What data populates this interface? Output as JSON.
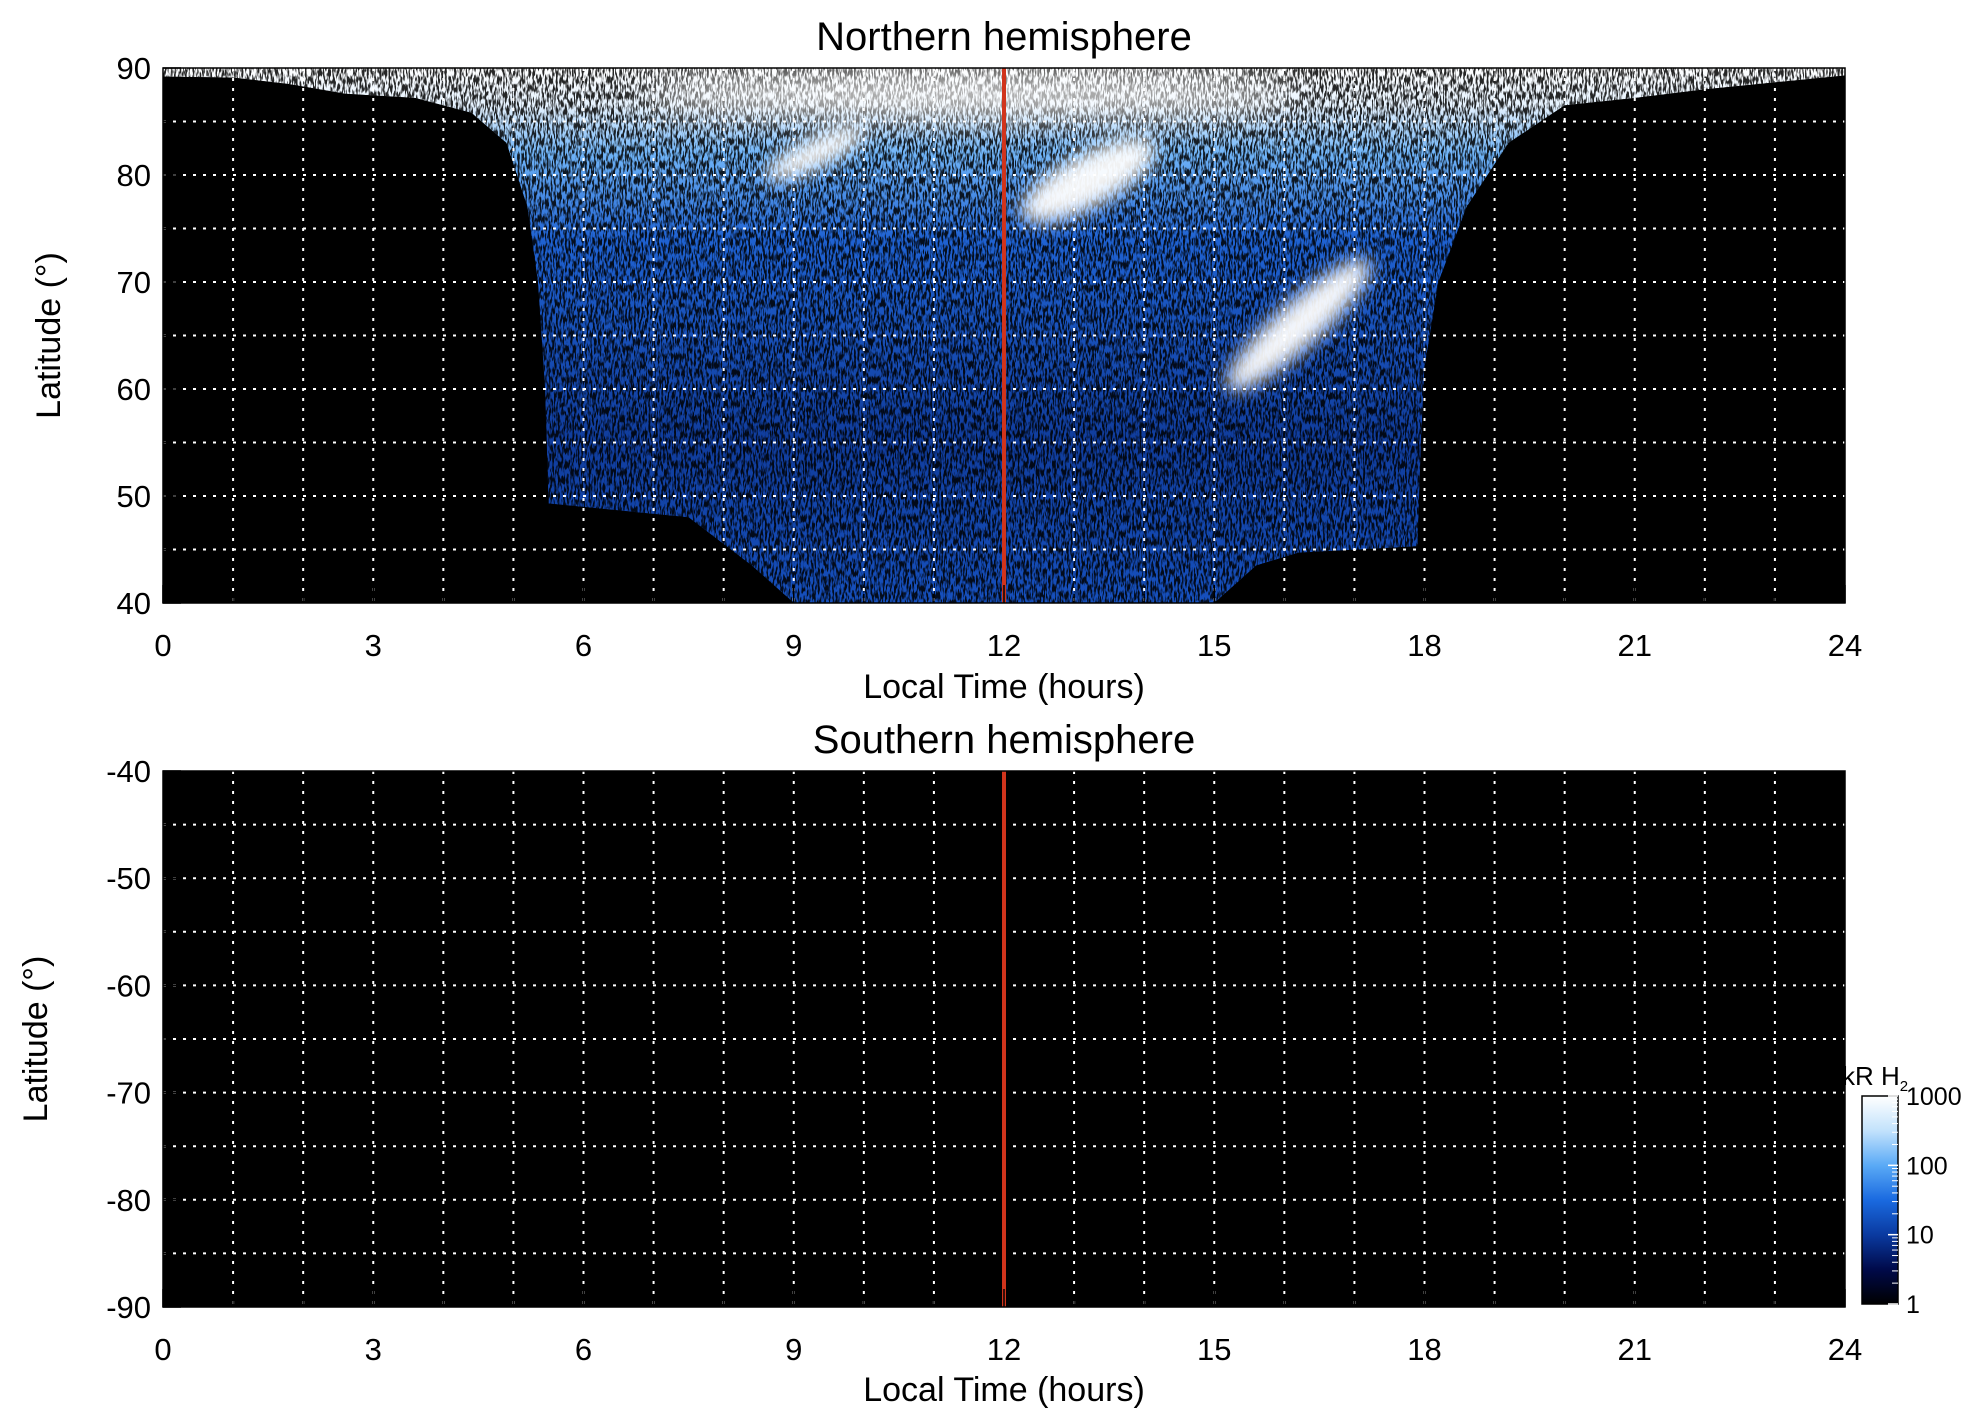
{
  "chart_data": [
    {
      "type": "heatmap",
      "title": "Northern hemisphere",
      "xlabel": "Local Time (hours)",
      "ylabel": "Latitude (°)",
      "xlim": [
        0,
        24
      ],
      "ylim": [
        40,
        90
      ],
      "xticks": [
        0,
        3,
        6,
        9,
        12,
        15,
        18,
        21,
        24
      ],
      "yticks": [
        40,
        50,
        60,
        70,
        80,
        90
      ],
      "x_gridlines": [
        1,
        2,
        3,
        4,
        5,
        6,
        7,
        8,
        9,
        10,
        11,
        13,
        14,
        15,
        16,
        17,
        18,
        19,
        20,
        21,
        22,
        23
      ],
      "y_gridlines": [
        45,
        50,
        55,
        60,
        65,
        70,
        75,
        80,
        85
      ],
      "grid": true,
      "background_color": "#000000",
      "marker_line": {
        "x": 12,
        "color": "#d0341c"
      },
      "coverage_boundary": [
        [
          0.0,
          89.2
        ],
        [
          1.0,
          89.1
        ],
        [
          1.8,
          88.5
        ],
        [
          2.6,
          87.6
        ],
        [
          3.6,
          87.2
        ],
        [
          4.4,
          85.8
        ],
        [
          4.9,
          83.0
        ],
        [
          5.2,
          77.0
        ],
        [
          5.35,
          70.0
        ],
        [
          5.45,
          60.0
        ],
        [
          5.5,
          49.3
        ],
        [
          7.5,
          48.0
        ],
        [
          8.4,
          43.5
        ],
        [
          9.0,
          40.0
        ],
        [
          15.0,
          40.0
        ],
        [
          15.6,
          43.5
        ],
        [
          16.2,
          44.7
        ],
        [
          17.9,
          45.3
        ],
        [
          17.95,
          55.0
        ],
        [
          18.0,
          62.0
        ],
        [
          18.2,
          70.0
        ],
        [
          18.6,
          77.0
        ],
        [
          19.2,
          83.0
        ],
        [
          20.0,
          86.5
        ],
        [
          21.0,
          87.2
        ],
        [
          22.0,
          88.0
        ],
        [
          24.0,
          89.3
        ]
      ],
      "bright_features": [
        {
          "lt": 9.3,
          "lat": 82.0,
          "intensity_kR": 1000
        },
        {
          "lt": 13.2,
          "lat": 79.5,
          "intensity_kR": 1000
        },
        {
          "lt": 16.2,
          "lat": 66.0,
          "intensity_kR": 1000
        },
        {
          "lt": 11.5,
          "lat": 87.5,
          "intensity_kR": 1000
        }
      ]
    },
    {
      "type": "heatmap",
      "title": "Southern hemisphere",
      "xlabel": "Local Time (hours)",
      "ylabel": "Latitude (°)",
      "xlim": [
        0,
        24
      ],
      "ylim": [
        -90,
        -40
      ],
      "xticks": [
        0,
        3,
        6,
        9,
        12,
        15,
        18,
        21,
        24
      ],
      "yticks": [
        -40,
        -50,
        -60,
        -70,
        -80,
        -90
      ],
      "x_gridlines": [
        1,
        2,
        3,
        4,
        5,
        6,
        7,
        8,
        9,
        10,
        11,
        13,
        14,
        15,
        16,
        17,
        18,
        19,
        20,
        21,
        22,
        23
      ],
      "y_gridlines": [
        -45,
        -50,
        -55,
        -60,
        -65,
        -70,
        -75,
        -80,
        -85
      ],
      "grid": true,
      "background_color": "#000000",
      "marker_line": {
        "x": 12,
        "color": "#d0341c"
      }
    }
  ],
  "colorbar": {
    "title_main": "kR H",
    "title_sub": "2",
    "scale": "log",
    "range": [
      1,
      1000
    ],
    "ticks": [
      1,
      10,
      100,
      1000
    ],
    "tick_labels": [
      "1",
      "10",
      "100",
      "1000"
    ],
    "colors": [
      "#000000",
      "#000a4a",
      "#0a3aa0",
      "#1a6ae0",
      "#5aaaf6",
      "#c2e2fc",
      "#ffffff"
    ]
  }
}
